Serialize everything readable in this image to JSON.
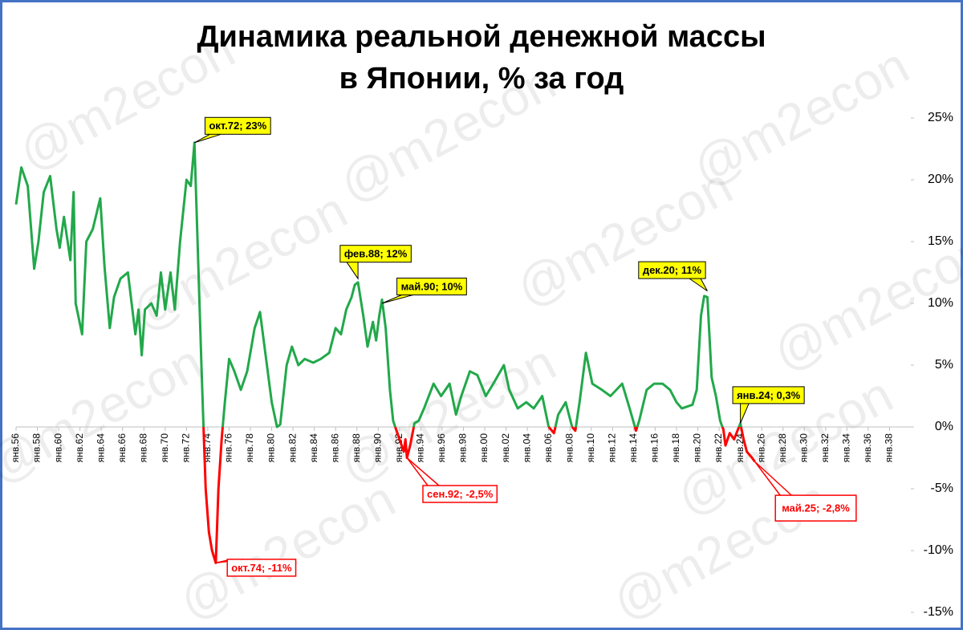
{
  "chart_data": {
    "type": "line",
    "title": [
      "Динамика реальной денежной массы",
      "в Японии, % за год"
    ],
    "watermark": "@m2econ",
    "x": [
      1956.0,
      1956.5,
      1957.1,
      1957.7,
      1958.1,
      1958.6,
      1959.2,
      1959.8,
      1960.1,
      1960.5,
      1961.1,
      1961.4,
      1961.6,
      1962.2,
      1962.6,
      1963.2,
      1963.9,
      1964.3,
      1964.8,
      1965.2,
      1965.8,
      1966.5,
      1967.2,
      1967.5,
      1967.8,
      1968.1,
      1968.7,
      1969.2,
      1969.6,
      1970.0,
      1970.5,
      1970.9,
      1971.4,
      1972.0,
      1972.4,
      1972.75,
      1973.0,
      1973.4,
      1973.8,
      1974.1,
      1974.4,
      1974.75,
      1975.0,
      1975.3,
      1975.6,
      1976.0,
      1976.5,
      1977.1,
      1977.7,
      1978.4,
      1978.9,
      1979.4,
      1980.0,
      1980.5,
      1980.8,
      1981.4,
      1981.9,
      1982.5,
      1983.1,
      1983.9,
      1984.6,
      1985.4,
      1986.0,
      1986.5,
      1987.0,
      1987.5,
      1987.8,
      1988.1,
      1988.6,
      1989.0,
      1989.5,
      1989.8,
      1990.1,
      1990.35,
      1990.7,
      1991.1,
      1991.4,
      1991.8,
      1992.2,
      1992.4,
      1992.55,
      1992.7,
      1993.0,
      1993.4,
      1993.8,
      1994.3,
      1995.2,
      1995.9,
      1996.7,
      1997.3,
      1997.8,
      1998.6,
      1999.3,
      2000.1,
      2000.8,
      2001.8,
      2002.3,
      2003.1,
      2003.9,
      2004.6,
      2005.4,
      2006.0,
      2006.5,
      2006.9,
      2007.6,
      2008.2,
      2008.5,
      2008.9,
      2009.5,
      2010.1,
      2011.0,
      2011.8,
      2012.9,
      2013.6,
      2014.2,
      2014.5,
      2015.2,
      2015.9,
      2016.7,
      2017.4,
      2018.0,
      2018.5,
      2019.5,
      2019.9,
      2020.3,
      2020.6,
      2020.9,
      2021.3,
      2021.7,
      2022.1,
      2022.4,
      2022.6,
      2023.0,
      2023.4,
      2024.0,
      2024.3,
      2024.6,
      2025.1,
      2025.35
    ],
    "values": [
      18,
      21,
      19.5,
      12.8,
      15,
      19,
      20.3,
      16,
      14.5,
      17,
      13.5,
      19,
      10,
      7.5,
      15,
      16,
      18.5,
      13,
      8,
      10.5,
      12,
      12.5,
      7.5,
      9.5,
      5.8,
      9.5,
      10,
      9,
      12.5,
      9.5,
      12.5,
      9.5,
      15,
      20,
      19.5,
      23,
      16,
      5,
      -5,
      -8.5,
      -10,
      -11,
      -5,
      -1,
      2,
      5.5,
      4.5,
      3,
      4.5,
      8,
      9.3,
      6,
      2,
      0,
      0.2,
      5,
      6.5,
      5,
      5.5,
      5.2,
      5.5,
      6,
      8,
      7.5,
      9.5,
      10.5,
      11.5,
      11.7,
      9,
      6.5,
      8.5,
      7,
      9,
      10.3,
      8,
      3,
      0.5,
      -0.5,
      -1.5,
      -2,
      -1,
      -2.5,
      -1.5,
      0.3,
      0.5,
      1.5,
      3.5,
      2.5,
      3.5,
      1,
      2.5,
      4.5,
      4.2,
      2.5,
      3.5,
      5,
      3,
      1.5,
      2,
      1.5,
      2.5,
      0,
      -0.5,
      1,
      2,
      0,
      -0.3,
      2,
      6,
      3.5,
      3,
      2.5,
      3.5,
      1.5,
      -0.3,
      0.5,
      3,
      3.5,
      3.5,
      3,
      2,
      1.5,
      1.8,
      3,
      9,
      10.6,
      10.5,
      4,
      2.5,
      0.5,
      -0.2,
      -1.5,
      -0.5,
      -1,
      0.3,
      -1,
      -2,
      -2.5,
      -2.8
    ],
    "color": "#22a84a",
    "negative_color": "#ff0000",
    "xlim": [
      1956,
      2040
    ],
    "xticks": [
      {
        "value": 1956,
        "label": "янв.56"
      },
      {
        "value": 1958,
        "label": "янв.58"
      },
      {
        "value": 1960,
        "label": "янв.60"
      },
      {
        "value": 1962,
        "label": "янв.62"
      },
      {
        "value": 1964,
        "label": "янв.64"
      },
      {
        "value": 1966,
        "label": "янв.66"
      },
      {
        "value": 1968,
        "label": "янв.68"
      },
      {
        "value": 1970,
        "label": "янв.70"
      },
      {
        "value": 1972,
        "label": "янв.72"
      },
      {
        "value": 1974,
        "label": "янв.74"
      },
      {
        "value": 1976,
        "label": "янв.76"
      },
      {
        "value": 1978,
        "label": "янв.78"
      },
      {
        "value": 1980,
        "label": "янв.80"
      },
      {
        "value": 1982,
        "label": "янв.82"
      },
      {
        "value": 1984,
        "label": "янв.84"
      },
      {
        "value": 1986,
        "label": "янв.86"
      },
      {
        "value": 1988,
        "label": "янв.88"
      },
      {
        "value": 1990,
        "label": "янв.90"
      },
      {
        "value": 1992,
        "label": "янв.92"
      },
      {
        "value": 1994,
        "label": "янв.94"
      },
      {
        "value": 1996,
        "label": "янв.96"
      },
      {
        "value": 1998,
        "label": "янв.98"
      },
      {
        "value": 2000,
        "label": "янв.00"
      },
      {
        "value": 2002,
        "label": "янв.02"
      },
      {
        "value": 2004,
        "label": "янв.04"
      },
      {
        "value": 2006,
        "label": "янв.06"
      },
      {
        "value": 2008,
        "label": "янв.08"
      },
      {
        "value": 2010,
        "label": "янв.10"
      },
      {
        "value": 2012,
        "label": "янв.12"
      },
      {
        "value": 2014,
        "label": "янв.14"
      },
      {
        "value": 2016,
        "label": "янв.16"
      },
      {
        "value": 2018,
        "label": "янв.18"
      },
      {
        "value": 2020,
        "label": "янв.20"
      },
      {
        "value": 2022,
        "label": "янв.22"
      },
      {
        "value": 2024,
        "label": "янв.24"
      },
      {
        "value": 2026,
        "label": "янв.26"
      },
      {
        "value": 2028,
        "label": "янв.28"
      },
      {
        "value": 2030,
        "label": "янв.30"
      },
      {
        "value": 2032,
        "label": "янв.32"
      },
      {
        "value": 2034,
        "label": "янв.34"
      },
      {
        "value": 2036,
        "label": "янв.36"
      },
      {
        "value": 2038,
        "label": "янв.38"
      }
    ],
    "ylim": [
      -15,
      25
    ],
    "yticks": [
      {
        "value": 25,
        "label": "25%"
      },
      {
        "value": 20,
        "label": "20%"
      },
      {
        "value": 15,
        "label": "15%"
      },
      {
        "value": 10,
        "label": "10%"
      },
      {
        "value": 5,
        "label": "5%"
      },
      {
        "value": 0,
        "label": "0%"
      },
      {
        "value": -5,
        "label": "-5%"
      },
      {
        "value": -10,
        "label": "-10%"
      },
      {
        "value": -15,
        "label": "-15%"
      }
    ],
    "annotations": [
      {
        "text": "окт.72; 23%",
        "x": 1972.75,
        "y": 23
      },
      {
        "text": "окт.74; -11%",
        "x": 1974.75,
        "y": -11
      },
      {
        "text": "фев.88; 12%",
        "x": 1988.1,
        "y": 12
      },
      {
        "text": "май.90; 10%",
        "x": 1990.35,
        "y": 10
      },
      {
        "text": "дек.20; 11%",
        "x": 2020.9,
        "y": 11
      },
      {
        "text": "янв.24; 0,3%",
        "x": 2024.0,
        "y": 0.3
      },
      {
        "text": "сен.92; -2,5%",
        "x": 1992.7,
        "y": -2.5
      },
      {
        "text": "май.25; -2,8%",
        "x": 2025.35,
        "y": -2.8,
        "emphasis": true
      }
    ]
  }
}
